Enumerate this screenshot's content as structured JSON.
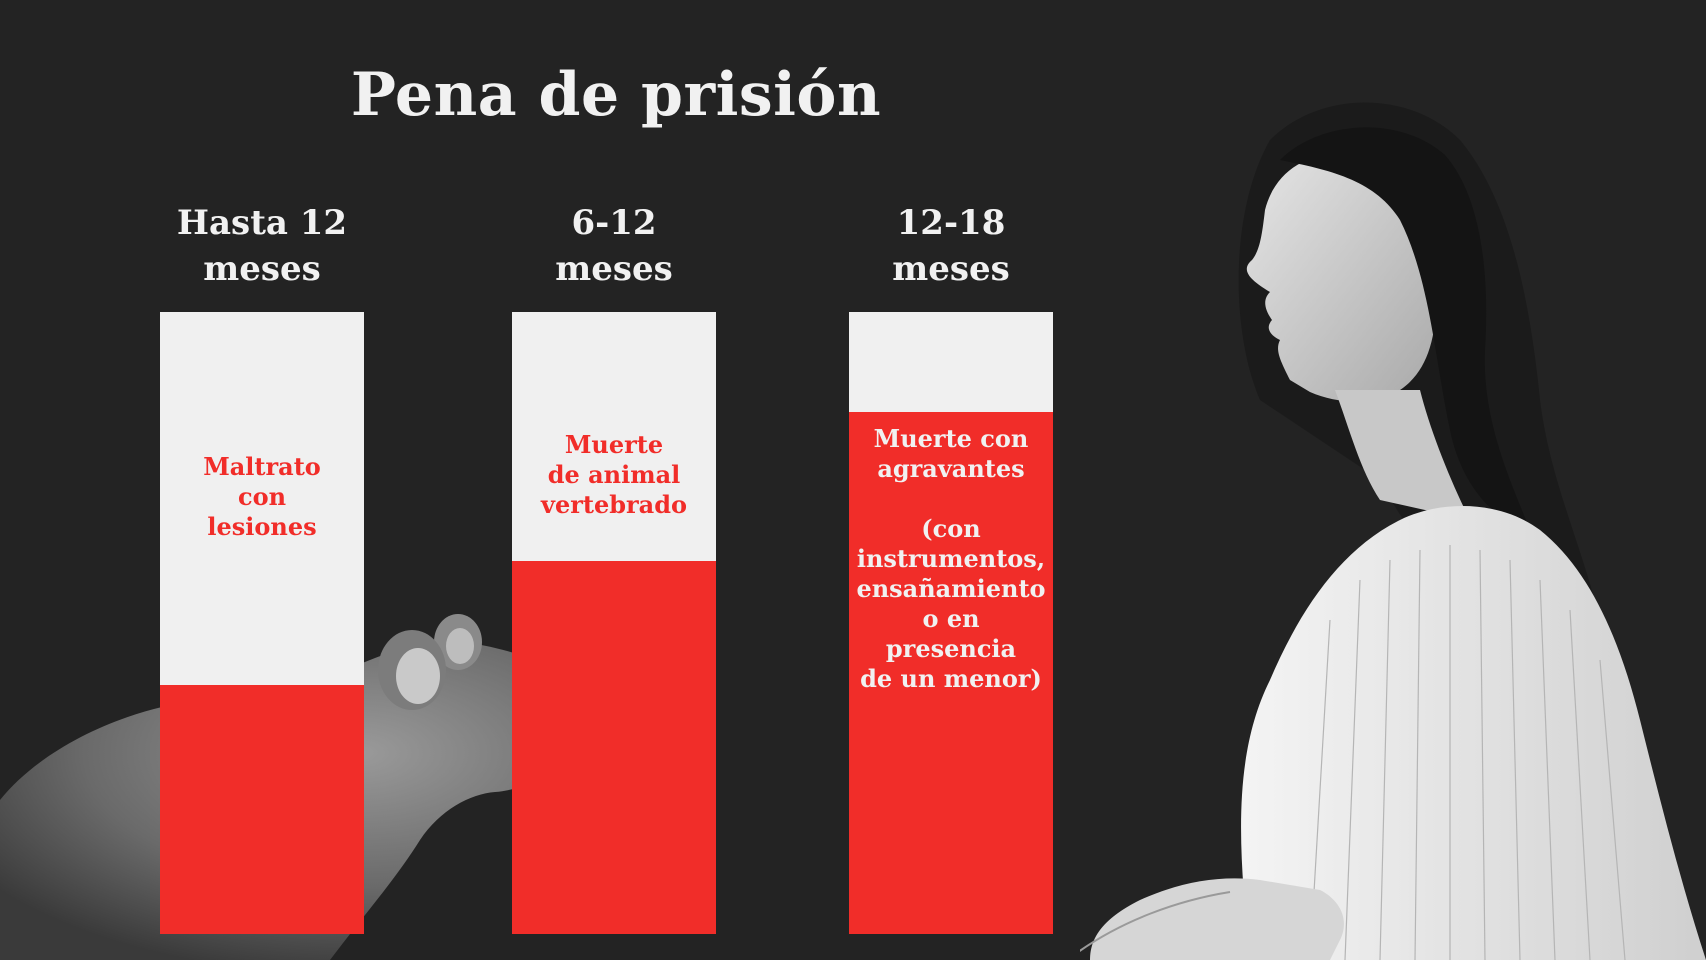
{
  "title": "Pena de prisión",
  "chart_data": {
    "type": "bar",
    "title": "Pena de prisión",
    "categories": [
      "Hasta 12\nmeses",
      "6-12\nmeses",
      "12-18\nmeses"
    ],
    "series": [
      {
        "values": [
          0.4,
          0.6,
          0.84
        ]
      }
    ],
    "bar_labels": [
      "Maltrato\ncon\nlesiones",
      "Muerte\nde animal\nvertebrado",
      "Muerte con\nagravantes\n\n(con\ninstrumentos,\nensañamiento\no en presencia\nde un menor)"
    ],
    "colors": {
      "background": "#232323",
      "bar_empty": "#f0f0f0",
      "bar_fill": "#f12d29",
      "text_light": "#f1f1f1"
    },
    "grid": false,
    "legend": "none"
  },
  "images": {
    "left": "rat-photo",
    "right": "speaker-woman-photo"
  }
}
